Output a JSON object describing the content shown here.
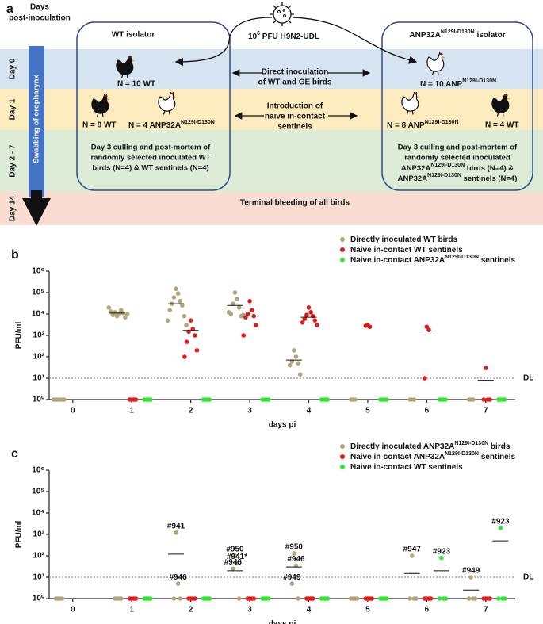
{
  "panel_a": {
    "label": "a",
    "days_header": [
      "Days",
      "post-inoculation"
    ],
    "days": [
      "Day 0",
      "Day 1",
      "Day 2 - 7",
      "Day 14"
    ],
    "swabbing": "Swabbing of oropharynx",
    "virus": [
      "10",
      "6",
      " PFU H9N2-UDL"
    ],
    "wt_isolator": "WT isolator",
    "ge_isolator": [
      "ANP32A",
      "N129I-D130N",
      " isolator"
    ],
    "wt_day0": "N = 10 WT",
    "ge_day0": [
      "N = 10 ANP",
      "N129I-D130N"
    ],
    "inoculation": [
      "Direct inoculation",
      "of WT and GE birds"
    ],
    "introduction": [
      "Introduction of",
      "naive in-contact",
      "sentinels"
    ],
    "wt_day1": [
      "N = 8 WT",
      [
        "N = 4 ANP32A",
        "N129I-D130N"
      ]
    ],
    "ge_day1": [
      [
        "N = 8 ANP",
        "N129I-D130N"
      ],
      "N = 4 WT"
    ],
    "wt_culling": [
      "Day 3 culling and post-mortem of",
      "randomly selected inoculated WT",
      "birds (N=4) & WT sentinels (N=4)"
    ],
    "ge_culling": [
      "Day 3 culling and post-mortem of",
      "randomly selected inoculated",
      [
        "ANP32A",
        "N129I-D130N",
        " birds (N=4) &"
      ],
      [
        "ANP32A",
        "N129I-D130N",
        " sentinels (N=4)"
      ]
    ],
    "terminal": "Terminal bleeding of all birds"
  },
  "chart_data": [
    {
      "type": "scatter",
      "panel": "b",
      "y_label": "PFU/ml",
      "x_label": "days pi",
      "yscale": "log",
      "xlim": [
        -0.4,
        7.5
      ],
      "ylim": [
        1,
        1000000
      ],
      "xticks": [
        0,
        1,
        2,
        3,
        4,
        5,
        6,
        7
      ],
      "yticks": [
        {
          "value": 1,
          "label": "10⁰"
        },
        {
          "value": 10,
          "label": "10¹"
        },
        {
          "value": 100,
          "label": "10²"
        },
        {
          "value": 1000,
          "label": "10³"
        },
        {
          "value": 10000,
          "label": "10⁴"
        },
        {
          "value": 100000,
          "label": "10⁵"
        },
        {
          "value": 1000000,
          "label": "10⁶"
        }
      ],
      "detection_limit": {
        "value": 10,
        "label": "DL"
      },
      "series": [
        {
          "name": [
            "Directly inoculated WT birds"
          ],
          "color": "#b3a57a",
          "x": [
            0,
            0,
            0,
            0,
            0,
            0,
            1,
            1,
            1,
            1,
            1,
            1,
            1,
            1,
            1,
            1,
            2,
            2,
            2,
            2,
            2,
            2,
            2,
            2,
            2,
            2,
            3,
            3,
            3,
            3,
            3,
            3,
            3,
            3,
            4,
            4,
            4,
            4,
            4,
            4,
            5,
            5,
            5,
            6,
            6,
            6,
            7,
            7,
            7
          ],
          "values": [
            1,
            1,
            1,
            1,
            1,
            1,
            8000,
            10000,
            12000,
            15000,
            9000,
            11000,
            13000,
            7000,
            20000,
            10000,
            150000,
            90000,
            60000,
            40000,
            30000,
            25000,
            15000,
            8000,
            5000,
            3000,
            100000,
            50000,
            30000,
            20000,
            10000,
            8000,
            12000,
            9000,
            200,
            100,
            60,
            50,
            40,
            15,
            1,
            1,
            1,
            1,
            1,
            1,
            1,
            1,
            1
          ],
          "medians": {
            "x": [
              1,
              2,
              3,
              4
            ],
            "values": [
              11000,
              30000,
              25000,
              70
            ]
          }
        },
        {
          "name": [
            "Naive in-contact WT sentinels"
          ],
          "color": "#e41b1b",
          "x": [
            1,
            1,
            1,
            1,
            2,
            2,
            2,
            2,
            2,
            2,
            2,
            3,
            3,
            3,
            3,
            3,
            3,
            3,
            4,
            4,
            4,
            4,
            4,
            4,
            4,
            4,
            5,
            5,
            5,
            6,
            6,
            6,
            7,
            7,
            7,
            7
          ],
          "values": [
            1,
            1,
            1,
            1,
            5000,
            2000,
            1500,
            1000,
            500,
            200,
            100,
            40000,
            15000,
            10000,
            8000,
            7000,
            3000,
            1000,
            20000,
            12000,
            9000,
            8000,
            6000,
            5000,
            4000,
            3000,
            3000,
            2500,
            2800,
            2500,
            1800,
            10,
            30,
            1,
            1,
            1
          ],
          "medians": {
            "x": [
              2,
              3,
              4,
              6,
              7
            ],
            "values": [
              1700,
              8000,
              7000,
              1600,
              8
            ]
          }
        },
        {
          "name": [
            "Naive in-contact ANP32A",
            "N129I-D130N",
            " sentinels"
          ],
          "color": "#33e633",
          "x": [
            1,
            1,
            1,
            1,
            2,
            2,
            2,
            2,
            3,
            3,
            3,
            3,
            4,
            4,
            4,
            4,
            5,
            5,
            5,
            5,
            6,
            6,
            6,
            6,
            7,
            7,
            7,
            7
          ],
          "values": [
            1,
            1,
            1,
            1,
            1,
            1,
            1,
            1,
            1,
            1,
            1,
            1,
            1,
            1,
            1,
            1,
            1,
            1,
            1,
            1,
            1,
            1,
            1,
            1,
            1,
            1,
            1,
            1
          ]
        }
      ]
    },
    {
      "type": "scatter",
      "panel": "c",
      "y_label": "PFU/ml",
      "x_label": "days pi",
      "yscale": "log",
      "xlim": [
        -0.4,
        7.5
      ],
      "ylim": [
        1,
        1000000
      ],
      "xticks": [
        0,
        1,
        2,
        3,
        4,
        5,
        6,
        7
      ],
      "yticks": [
        {
          "value": 1,
          "label": "10⁰"
        },
        {
          "value": 10,
          "label": "10¹"
        },
        {
          "value": 100,
          "label": "10²"
        },
        {
          "value": 1000,
          "label": "10³"
        },
        {
          "value": 10000,
          "label": "10⁴"
        },
        {
          "value": 100000,
          "label": "10⁵"
        },
        {
          "value": 1000000,
          "label": "10⁶"
        }
      ],
      "detection_limit": {
        "value": 10,
        "label": "DL"
      },
      "series": [
        {
          "name": [
            "Directly inoculated ANP32A",
            "N129I-D130N",
            " birds"
          ],
          "color": "#b3a57a",
          "x": [
            0,
            0,
            0,
            0,
            1,
            1,
            1,
            1,
            2,
            2,
            2,
            2,
            3,
            3,
            3,
            3,
            4,
            4,
            4,
            4,
            5,
            5,
            5,
            5,
            6,
            6,
            6,
            6,
            7,
            7,
            7,
            7
          ],
          "values": [
            1,
            1,
            1,
            1,
            1,
            1,
            1,
            1,
            1200,
            5,
            1,
            1,
            100,
            45,
            25,
            1,
            130,
            35,
            5,
            1,
            1,
            1,
            1,
            1,
            100,
            1,
            1,
            1,
            10,
            1,
            1,
            1
          ],
          "point_labels": [
            null,
            null,
            null,
            null,
            null,
            null,
            null,
            null,
            "#941",
            "#946",
            null,
            null,
            "#950",
            "#941*",
            "#946",
            null,
            "#950",
            "#946",
            "#949",
            null,
            null,
            null,
            null,
            null,
            "#947",
            null,
            null,
            null,
            "#949",
            null,
            null,
            null
          ],
          "medians": {
            "x": [
              2,
              3,
              4,
              6,
              7
            ],
            "values": [
              120,
              20,
              30,
              15,
              2.5
            ]
          }
        },
        {
          "name": [
            "Naive in-contact ANP32A",
            "N129I-D130N",
            " sentinels"
          ],
          "color": "#e41b1b",
          "x": [
            1,
            1,
            1,
            1,
            2,
            2,
            2,
            2,
            3,
            3,
            3,
            3,
            4,
            4,
            4,
            4,
            5,
            5,
            5,
            5,
            6,
            6,
            6,
            6,
            7,
            7,
            7,
            7
          ],
          "values": [
            1,
            1,
            1,
            1,
            1,
            1,
            1,
            1,
            1,
            1,
            1,
            1,
            1,
            1,
            1,
            1,
            1,
            1,
            1,
            1,
            1,
            1,
            1,
            1,
            1,
            1,
            1,
            1
          ]
        },
        {
          "name": [
            "Naive in-contact WT sentinels"
          ],
          "color": "#33e633",
          "x": [
            1,
            1,
            1,
            1,
            2,
            2,
            2,
            2,
            3,
            3,
            3,
            3,
            4,
            4,
            4,
            4,
            5,
            5,
            5,
            5,
            6,
            6,
            6,
            6,
            7,
            7,
            7,
            7
          ],
          "values": [
            1,
            1,
            1,
            1,
            1,
            1,
            1,
            1,
            1,
            1,
            1,
            1,
            1,
            1,
            1,
            1,
            1,
            1,
            1,
            1,
            80,
            1,
            1,
            1,
            2000,
            1,
            1,
            1
          ],
          "point_labels": [
            null,
            null,
            null,
            null,
            null,
            null,
            null,
            null,
            null,
            null,
            null,
            null,
            null,
            null,
            null,
            null,
            null,
            null,
            null,
            null,
            "#923",
            null,
            null,
            null,
            "#923",
            null,
            null,
            null
          ],
          "medians": {
            "x": [
              6,
              7
            ],
            "values": [
              20,
              500
            ]
          }
        }
      ]
    }
  ]
}
